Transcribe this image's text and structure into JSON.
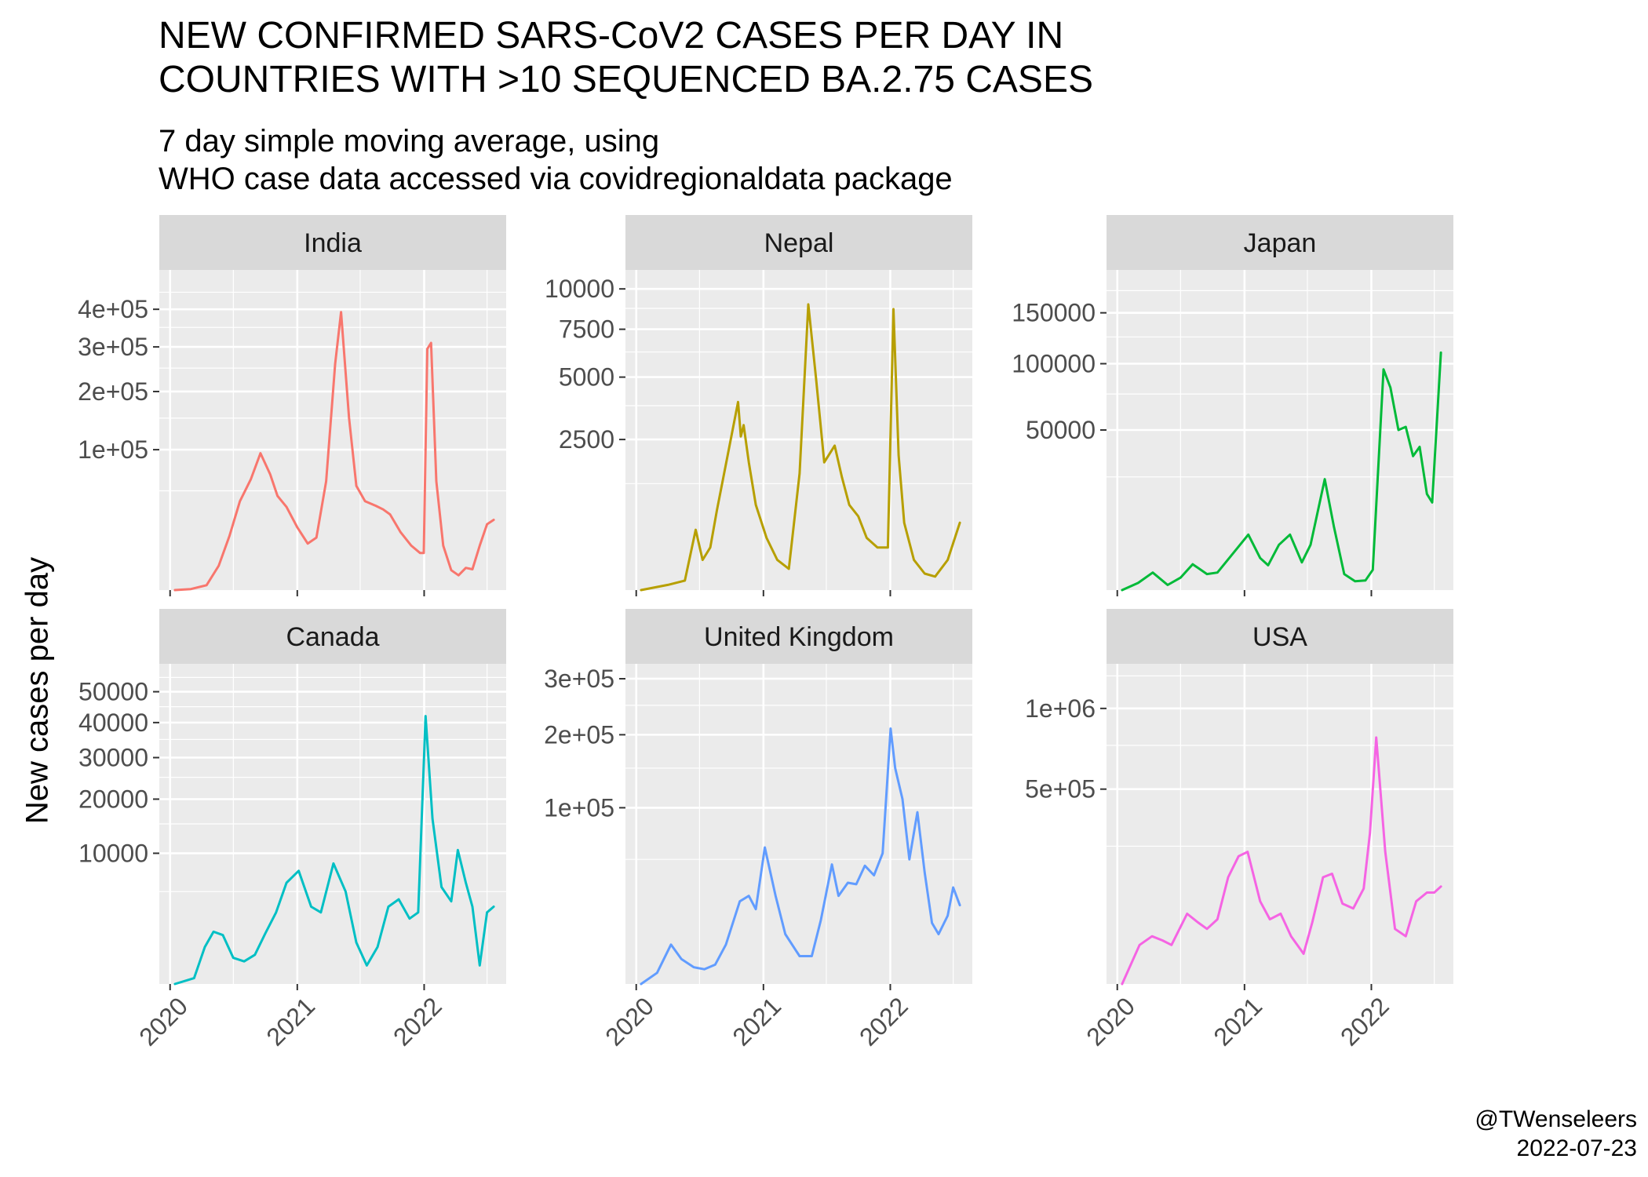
{
  "title": "NEW CONFIRMED SARS-CoV2 CASES PER DAY IN\nCOUNTRIES WITH >10 SEQUENCED BA.2.75 CASES",
  "subtitle": "7 day simple moving average, using\nWHO case data accessed via covidregionaldata package",
  "ylabel": "New cases per day",
  "caption": {
    "handle": "@TWenseleers",
    "date": "2022-07-23"
  },
  "chart_data": [
    {
      "type": "line",
      "panel": "India",
      "color": "#F8766D",
      "yscale": "sqrt",
      "ylim": [
        0,
        520000
      ],
      "xlim": [
        "2019-12-01",
        "2022-08-25"
      ],
      "xticks": [
        "2020",
        "2021",
        "2022"
      ],
      "yticks": [
        {
          "value": 100000,
          "label": "1e+05"
        },
        {
          "value": 200000,
          "label": "2e+05"
        },
        {
          "value": 300000,
          "label": "3e+05"
        },
        {
          "value": 400000,
          "label": "4e+05"
        }
      ],
      "yminor": [
        50000,
        150000,
        250000,
        350000,
        450000
      ],
      "x": [
        "2020-01-15",
        "2020-03-01",
        "2020-04-15",
        "2020-05-20",
        "2020-06-20",
        "2020-07-20",
        "2020-08-20",
        "2020-09-17",
        "2020-10-15",
        "2020-11-05",
        "2020-12-01",
        "2021-01-01",
        "2021-01-31",
        "2021-02-25",
        "2021-03-25",
        "2021-04-20",
        "2021-05-07",
        "2021-05-30",
        "2021-06-20",
        "2021-07-15",
        "2021-08-15",
        "2021-09-05",
        "2021-09-25",
        "2021-10-25",
        "2021-11-25",
        "2021-12-20",
        "2021-12-31",
        "2022-01-10",
        "2022-01-21",
        "2022-02-05",
        "2022-02-25",
        "2022-03-20",
        "2022-04-10",
        "2022-05-01",
        "2022-05-20",
        "2022-06-10",
        "2022-07-01",
        "2022-07-20"
      ],
      "y": [
        0,
        5,
        120,
        3000,
        15000,
        40000,
        62000,
        95000,
        68000,
        45000,
        35000,
        20000,
        11000,
        14000,
        60000,
        260000,
        392000,
        150000,
        55000,
        40000,
        36000,
        33000,
        29000,
        17000,
        10000,
        7000,
        7000,
        295000,
        310000,
        60000,
        10000,
        2000,
        1100,
        2500,
        2200,
        10000,
        22000,
        25000
      ]
    },
    {
      "type": "line",
      "panel": "Nepal",
      "color": "#B79F00",
      "yscale": "sqrt",
      "ylim": [
        0,
        11300
      ],
      "xlim": [
        "2019-12-01",
        "2022-08-25"
      ],
      "xticks": [
        "2020",
        "2021",
        "2022"
      ],
      "yticks": [
        {
          "value": 2500,
          "label": "2500"
        },
        {
          "value": 5000,
          "label": "5000"
        },
        {
          "value": 7500,
          "label": "7500"
        },
        {
          "value": 10000,
          "label": "10000"
        }
      ],
      "yminor": [
        1250,
        3750,
        6250,
        8750
      ],
      "x": [
        "2020-01-15",
        "2020-04-01",
        "2020-05-20",
        "2020-06-20",
        "2020-07-10",
        "2020-08-01",
        "2020-08-20",
        "2020-09-20",
        "2020-10-20",
        "2020-10-28",
        "2020-11-05",
        "2020-11-20",
        "2020-12-10",
        "2021-01-10",
        "2021-02-10",
        "2021-03-15",
        "2021-04-15",
        "2021-05-10",
        "2021-06-01",
        "2021-06-25",
        "2021-07-25",
        "2021-08-15",
        "2021-09-05",
        "2021-10-01",
        "2021-10-25",
        "2021-11-25",
        "2021-12-25",
        "2022-01-10",
        "2022-01-25",
        "2022-02-10",
        "2022-03-10",
        "2022-04-10",
        "2022-05-10",
        "2022-06-15",
        "2022-07-20"
      ],
      "y": [
        0,
        3,
        10,
        400,
        100,
        200,
        700,
        2000,
        3900,
        2600,
        3000,
        1800,
        800,
        300,
        100,
        50,
        1500,
        9000,
        5000,
        1800,
        2300,
        1400,
        800,
        600,
        300,
        200,
        200,
        8700,
        2000,
        500,
        100,
        30,
        20,
        100,
        500
      ]
    },
    {
      "type": "line",
      "panel": "Japan",
      "color": "#00BA38",
      "yscale": "sqrt",
      "ylim": [
        0,
        200000
      ],
      "xlim": [
        "2019-12-01",
        "2022-08-25"
      ],
      "xticks": [
        "2020",
        "2021",
        "2022"
      ],
      "yticks": [
        {
          "value": 50000,
          "label": "50000"
        },
        {
          "value": 100000,
          "label": "100000"
        },
        {
          "value": 150000,
          "label": "150000"
        }
      ],
      "yminor": [
        25000,
        75000,
        125000,
        175000
      ],
      "x": [
        "2020-01-15",
        "2020-03-01",
        "2020-04-12",
        "2020-05-25",
        "2020-07-01",
        "2020-08-05",
        "2020-09-15",
        "2020-10-15",
        "2020-11-20",
        "2021-01-12",
        "2021-02-15",
        "2021-03-10",
        "2021-04-10",
        "2021-05-12",
        "2021-06-15",
        "2021-07-10",
        "2021-08-20",
        "2021-09-15",
        "2021-10-15",
        "2021-11-15",
        "2021-12-15",
        "2022-01-05",
        "2022-02-05",
        "2022-02-25",
        "2022-03-20",
        "2022-04-10",
        "2022-05-01",
        "2022-05-20",
        "2022-06-10",
        "2022-06-25",
        "2022-07-20"
      ],
      "y": [
        0,
        100,
        600,
        50,
        300,
        1300,
        500,
        600,
        2100,
        6000,
        2000,
        1200,
        4000,
        6000,
        1500,
        4000,
        24000,
        8000,
        500,
        150,
        180,
        800,
        95000,
        80000,
        50000,
        52000,
        35000,
        40000,
        18000,
        15000,
        110000
      ]
    },
    {
      "type": "line",
      "panel": "Canada",
      "color": "#00BFC4",
      "yscale": "sqrt",
      "ylim": [
        0,
        60000
      ],
      "xlim": [
        "2019-12-01",
        "2022-08-25"
      ],
      "xticks": [
        "2020",
        "2021",
        "2022"
      ],
      "yticks": [
        {
          "value": 10000,
          "label": "10000"
        },
        {
          "value": 20000,
          "label": "20000"
        },
        {
          "value": 30000,
          "label": "30000"
        },
        {
          "value": 40000,
          "label": "40000"
        },
        {
          "value": 50000,
          "label": "50000"
        }
      ],
      "yminor": [
        5000,
        15000,
        25000,
        35000,
        45000,
        55000
      ],
      "x": [
        "2020-01-15",
        "2020-03-10",
        "2020-04-10",
        "2020-05-05",
        "2020-06-01",
        "2020-07-01",
        "2020-08-01",
        "2020-09-01",
        "2020-10-01",
        "2020-11-01",
        "2020-12-01",
        "2021-01-05",
        "2021-02-10",
        "2021-03-10",
        "2021-04-15",
        "2021-05-20",
        "2021-06-20",
        "2021-07-20",
        "2021-08-20",
        "2021-09-20",
        "2021-10-20",
        "2021-11-20",
        "2021-12-15",
        "2022-01-05",
        "2022-01-25",
        "2022-02-20",
        "2022-03-20",
        "2022-04-08",
        "2022-05-01",
        "2022-05-20",
        "2022-06-10",
        "2022-07-01",
        "2022-07-20"
      ],
      "y": [
        0,
        20,
        800,
        1600,
        1400,
        400,
        300,
        500,
        1500,
        3000,
        6000,
        7500,
        3500,
        3000,
        8500,
        5000,
        1000,
        200,
        800,
        3500,
        4200,
        2500,
        3000,
        42000,
        16000,
        5500,
        4000,
        10500,
        6000,
        3500,
        200,
        3000,
        3500
      ]
    },
    {
      "type": "line",
      "panel": "United Kingdom",
      "color": "#619CFF",
      "yscale": "sqrt",
      "ylim": [
        0,
        330000
      ],
      "xlim": [
        "2019-12-01",
        "2022-08-25"
      ],
      "xticks": [
        "2020",
        "2021",
        "2022"
      ],
      "yticks": [
        {
          "value": 100000,
          "label": "1e+05"
        },
        {
          "value": 200000,
          "label": "2e+05"
        },
        {
          "value": 300000,
          "label": "3e+05"
        }
      ],
      "yminor": [
        50000,
        150000,
        250000
      ],
      "x": [
        "2020-01-15",
        "2020-03-01",
        "2020-04-10",
        "2020-05-10",
        "2020-06-15",
        "2020-07-15",
        "2020-08-15",
        "2020-09-15",
        "2020-10-25",
        "2020-11-20",
        "2020-12-10",
        "2021-01-05",
        "2021-02-05",
        "2021-03-05",
        "2021-04-15",
        "2021-05-20",
        "2021-06-15",
        "2021-07-17",
        "2021-08-05",
        "2021-09-01",
        "2021-09-25",
        "2021-10-20",
        "2021-11-15",
        "2021-12-10",
        "2022-01-02",
        "2022-01-15",
        "2022-02-05",
        "2022-02-25",
        "2022-03-20",
        "2022-04-10",
        "2022-05-01",
        "2022-05-20",
        "2022-06-15",
        "2022-07-01",
        "2022-07-20"
      ],
      "y": [
        0,
        400,
        5000,
        2000,
        900,
        700,
        1200,
        5000,
        22000,
        25000,
        18000,
        60000,
        25000,
        8000,
        2500,
        2500,
        13000,
        46000,
        25000,
        33000,
        32000,
        45000,
        38000,
        55000,
        210000,
        150000,
        110000,
        50000,
        95000,
        40000,
        12000,
        8000,
        15000,
        30000,
        20000
      ]
    },
    {
      "type": "line",
      "panel": "USA",
      "color": "#F564E3",
      "yscale": "sqrt",
      "ylim": [
        0,
        1350000
      ],
      "xlim": [
        "2019-12-01",
        "2022-08-25"
      ],
      "xticks": [
        "2020",
        "2021",
        "2022"
      ],
      "yticks": [
        {
          "value": 500000,
          "label": "5e+05"
        },
        {
          "value": 1000000,
          "label": "1e+06"
        }
      ],
      "yminor": [
        250000,
        750000,
        1250000
      ],
      "x": [
        "2020-01-15",
        "2020-03-05",
        "2020-04-10",
        "2020-05-10",
        "2020-06-05",
        "2020-07-20",
        "2020-08-20",
        "2020-09-15",
        "2020-10-15",
        "2020-11-15",
        "2020-12-15",
        "2021-01-10",
        "2021-02-15",
        "2021-03-15",
        "2021-04-15",
        "2021-05-15",
        "2021-06-20",
        "2021-07-15",
        "2021-08-15",
        "2021-09-10",
        "2021-10-10",
        "2021-11-10",
        "2021-12-10",
        "2021-12-28",
        "2022-01-15",
        "2022-02-10",
        "2022-03-10",
        "2022-04-10",
        "2022-05-10",
        "2022-06-10",
        "2022-07-01",
        "2022-07-20"
      ],
      "y": [
        0,
        20000,
        30000,
        25000,
        20000,
        65000,
        50000,
        40000,
        55000,
        150000,
        215000,
        230000,
        90000,
        55000,
        65000,
        30000,
        12000,
        50000,
        150000,
        160000,
        85000,
        75000,
        120000,
        300000,
        800000,
        230000,
        40000,
        30000,
        90000,
        110000,
        110000,
        125000
      ]
    }
  ]
}
